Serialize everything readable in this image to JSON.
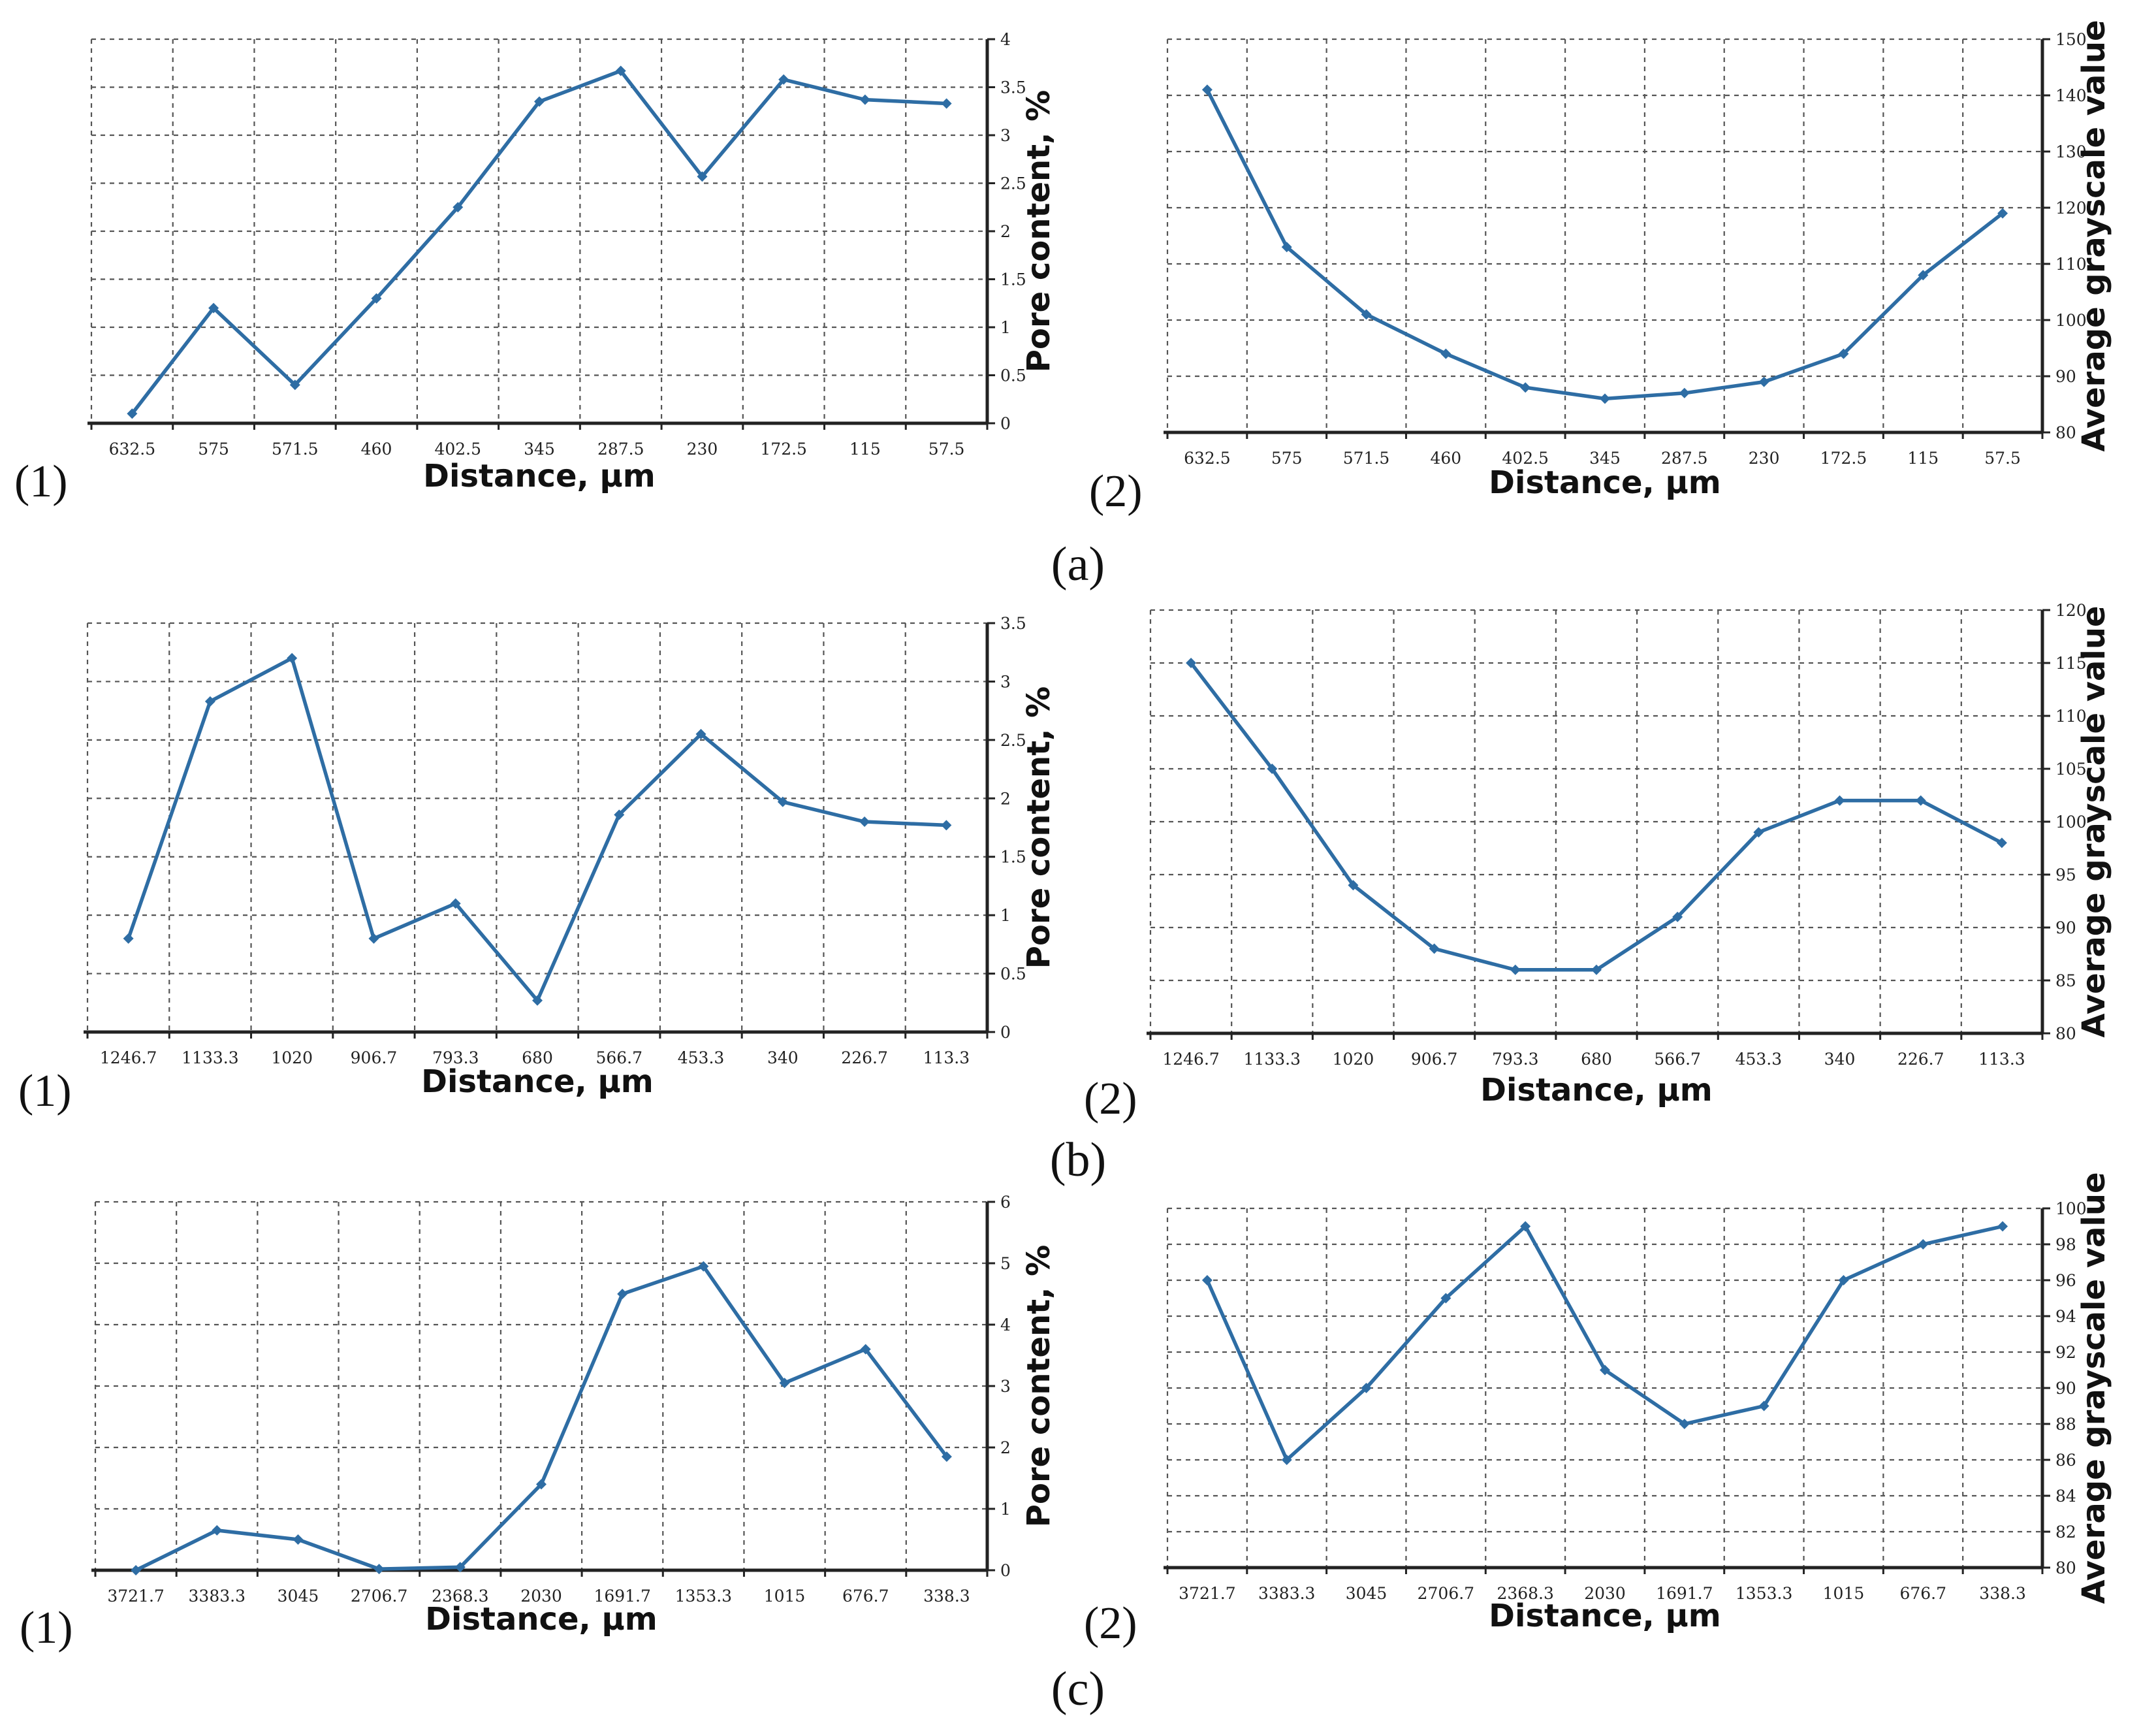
{
  "colors": {
    "series": "#2e6da4"
  },
  "panel_labels": [
    "(a)",
    "(b)",
    "(c)"
  ],
  "chart_data": [
    {
      "id": "a1",
      "type": "line",
      "panel": "a",
      "sublabel": "(1)",
      "xlabel": "Distance, μm",
      "ylabel": "Pore content, %",
      "categories": [
        "632.5",
        "575",
        "571.5",
        "460",
        "402.5",
        "345",
        "287.5",
        "230",
        "172.5",
        "115",
        "57.5"
      ],
      "values": [
        0.1,
        1.2,
        0.4,
        1.3,
        2.25,
        3.35,
        3.67,
        2.57,
        3.58,
        3.37,
        3.33
      ],
      "ylim": [
        0,
        4
      ],
      "yticks": [
        "0",
        "0.5",
        "1",
        "1.5",
        "2",
        "2.5",
        "3",
        "3.5",
        "4"
      ],
      "ytick_values": [
        0,
        0.5,
        1,
        1.5,
        2,
        2.5,
        3,
        3.5,
        4
      ]
    },
    {
      "id": "a2",
      "type": "line",
      "panel": "a",
      "sublabel": "(2)",
      "xlabel": "Distance, μm",
      "ylabel": "Average grayscale value",
      "categories": [
        "632.5",
        "575",
        "571.5",
        "460",
        "402.5",
        "345",
        "287.5",
        "230",
        "172.5",
        "115",
        "57.5"
      ],
      "values": [
        141,
        113,
        101,
        94,
        88,
        86,
        87,
        89,
        94,
        108,
        119
      ],
      "ylim": [
        80,
        150
      ],
      "yticks": [
        "80",
        "90",
        "100",
        "110",
        "120",
        "130",
        "140",
        "150"
      ],
      "ytick_values": [
        80,
        90,
        100,
        110,
        120,
        130,
        140,
        150
      ]
    },
    {
      "id": "b1",
      "type": "line",
      "panel": "b",
      "sublabel": "(1)",
      "xlabel": "Distance, μm",
      "ylabel": "Pore content, %",
      "categories": [
        "1246.7",
        "1133.3",
        "1020",
        "906.7",
        "793.3",
        "680",
        "566.7",
        "453.3",
        "340",
        "226.7",
        "113.3"
      ],
      "values": [
        0.8,
        2.83,
        3.2,
        0.8,
        1.1,
        0.27,
        1.86,
        2.55,
        1.97,
        1.8,
        1.77
      ],
      "ylim": [
        0,
        3.5
      ],
      "yticks": [
        "0",
        "0.5",
        "1",
        "1.5",
        "2",
        "2.5",
        "3",
        "3.5"
      ],
      "ytick_values": [
        0,
        0.5,
        1,
        1.5,
        2,
        2.5,
        3,
        3.5
      ]
    },
    {
      "id": "b2",
      "type": "line",
      "panel": "b",
      "sublabel": "(2)",
      "xlabel": "Distance, μm",
      "ylabel": "Average grayscale value",
      "categories": [
        "1246.7",
        "1133.3",
        "1020",
        "906.7",
        "793.3",
        "680",
        "566.7",
        "453.3",
        "340",
        "226.7",
        "113.3"
      ],
      "values": [
        115,
        105,
        94,
        88,
        86,
        86,
        91,
        99,
        102,
        102,
        98
      ],
      "ylim": [
        80,
        120
      ],
      "yticks": [
        "80",
        "85",
        "90",
        "95",
        "100",
        "105",
        "110",
        "115",
        "120"
      ],
      "ytick_values": [
        80,
        85,
        90,
        95,
        100,
        105,
        110,
        115,
        120
      ]
    },
    {
      "id": "c1",
      "type": "line",
      "panel": "c",
      "sublabel": "(1)",
      "xlabel": "Distance, μm",
      "ylabel": "Pore content, %",
      "categories": [
        "3721.7",
        "3383.3",
        "3045",
        "2706.7",
        "2368.3",
        "2030",
        "1691.7",
        "1353.3",
        "1015",
        "676.7",
        "338.3"
      ],
      "values": [
        0,
        0.65,
        0.5,
        0.02,
        0.05,
        1.4,
        4.5,
        4.95,
        3.05,
        3.6,
        1.85
      ],
      "ylim": [
        0,
        6
      ],
      "yticks": [
        "0",
        "1",
        "2",
        "3",
        "4",
        "5",
        "6"
      ],
      "ytick_values": [
        0,
        1,
        2,
        3,
        4,
        5,
        6
      ]
    },
    {
      "id": "c2",
      "type": "line",
      "panel": "c",
      "sublabel": "(2)",
      "xlabel": "Distance, μm",
      "ylabel": "Average grayscale value",
      "categories": [
        "3721.7",
        "3383.3",
        "3045",
        "2706.7",
        "2368.3",
        "2030",
        "1691.7",
        "1353.3",
        "1015",
        "676.7",
        "338.3"
      ],
      "values": [
        96,
        86,
        90,
        95,
        99,
        91,
        88,
        89,
        96,
        98,
        99
      ],
      "ylim": [
        80,
        100
      ],
      "yticks": [
        "80",
        "82",
        "84",
        "86",
        "88",
        "90",
        "92",
        "94",
        "96",
        "98",
        "100"
      ],
      "ytick_values": [
        80,
        82,
        84,
        86,
        88,
        90,
        92,
        94,
        96,
        98,
        100
      ]
    }
  ]
}
